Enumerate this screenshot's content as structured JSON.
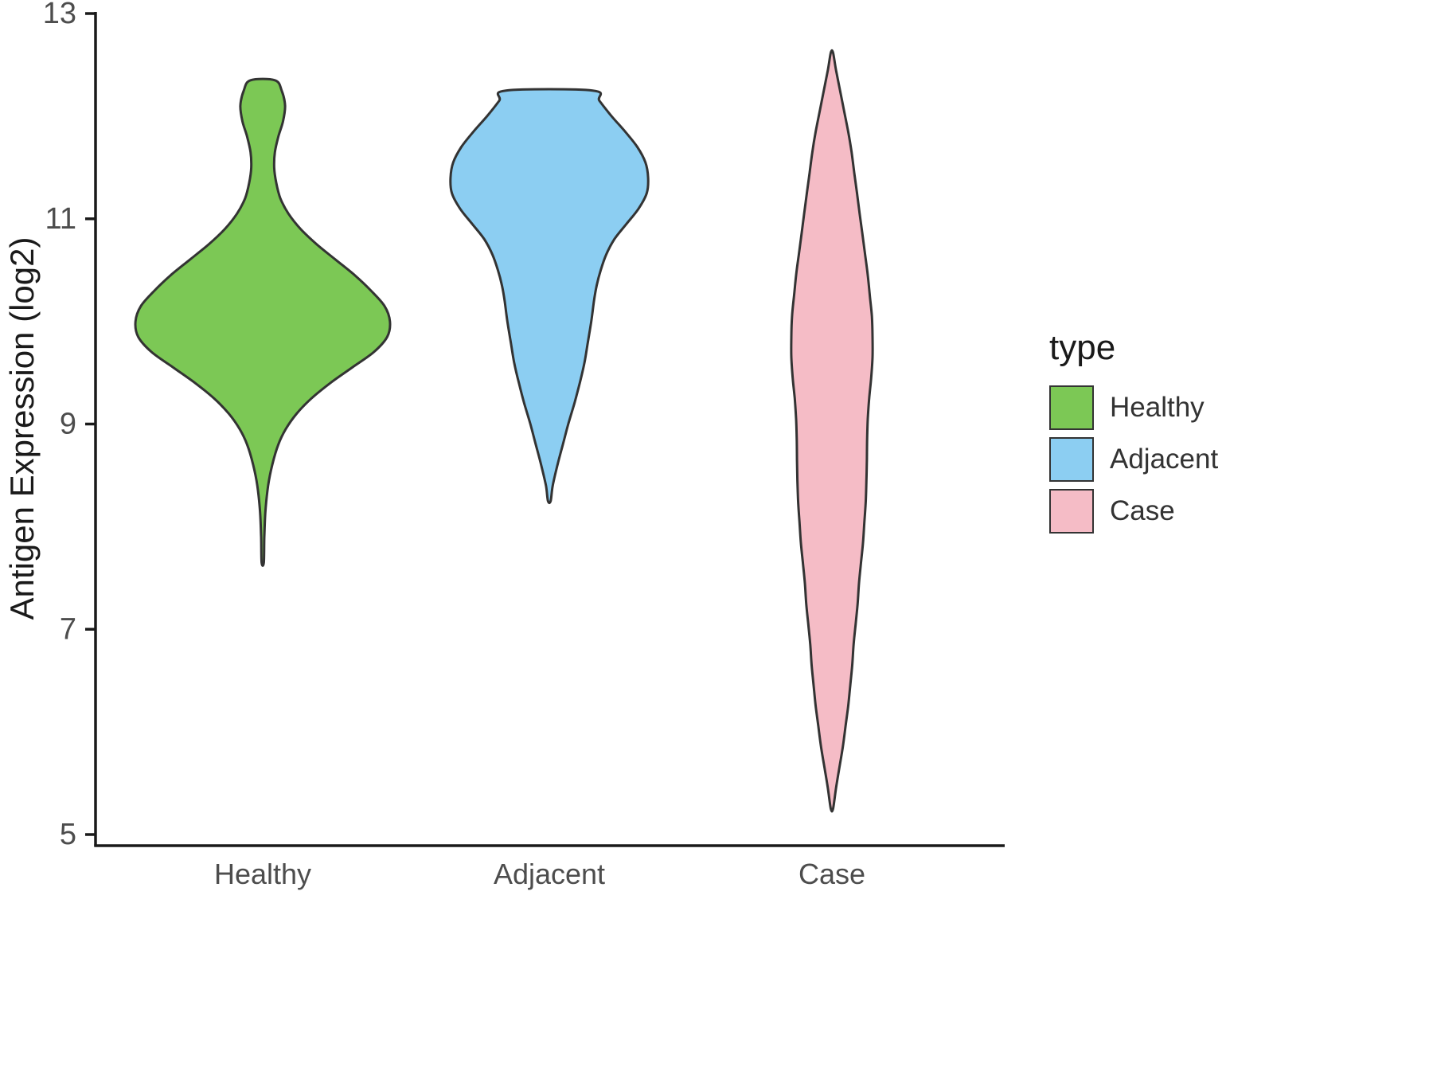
{
  "chart_data": {
    "type": "violin",
    "title": "",
    "xlabel": "",
    "ylabel": "Antigen Expression (log2)",
    "ylim": [
      5,
      13
    ],
    "yticks": [
      "5",
      "7",
      "9",
      "11",
      "13"
    ],
    "ytick_values": [
      5,
      7,
      9,
      11,
      13
    ],
    "categories": [
      "Healthy",
      "Adjacent",
      "Case"
    ],
    "grid": "off",
    "legend": {
      "title": "type",
      "position": "right",
      "entries": [
        {
          "label": "Healthy",
          "color": "#7CC855"
        },
        {
          "label": "Adjacent",
          "color": "#8CCEF2"
        },
        {
          "label": "Case",
          "color": "#F5BCC6"
        }
      ]
    },
    "outline_color": "#333333",
    "axis_color": "#1a1a1a",
    "tick_label_color": "#4d4d4d",
    "series": [
      {
        "name": "Healthy",
        "color": "#7CC855",
        "value_range": [
          7.65,
          12.35
        ],
        "profile": [
          [
            12.35,
            0.09
          ],
          [
            12.25,
            0.14
          ],
          [
            12.1,
            0.165
          ],
          [
            11.95,
            0.15
          ],
          [
            11.8,
            0.115
          ],
          [
            11.65,
            0.09
          ],
          [
            11.5,
            0.085
          ],
          [
            11.35,
            0.1
          ],
          [
            11.2,
            0.13
          ],
          [
            11.05,
            0.19
          ],
          [
            10.9,
            0.28
          ],
          [
            10.75,
            0.4
          ],
          [
            10.6,
            0.54
          ],
          [
            10.45,
            0.68
          ],
          [
            10.3,
            0.8
          ],
          [
            10.15,
            0.9
          ],
          [
            10.0,
            0.94
          ],
          [
            9.85,
            0.92
          ],
          [
            9.7,
            0.82
          ],
          [
            9.55,
            0.66
          ],
          [
            9.4,
            0.5
          ],
          [
            9.25,
            0.36
          ],
          [
            9.1,
            0.25
          ],
          [
            8.95,
            0.17
          ],
          [
            8.8,
            0.115
          ],
          [
            8.6,
            0.07
          ],
          [
            8.4,
            0.04
          ],
          [
            8.15,
            0.02
          ],
          [
            7.9,
            0.012
          ],
          [
            7.65,
            0.008
          ]
        ]
      },
      {
        "name": "Adjacent",
        "color": "#8CCEF2",
        "value_range": [
          8.25,
          12.25
        ],
        "profile": [
          [
            12.25,
            0.32
          ],
          [
            12.15,
            0.37
          ],
          [
            12.0,
            0.46
          ],
          [
            11.85,
            0.56
          ],
          [
            11.7,
            0.65
          ],
          [
            11.55,
            0.71
          ],
          [
            11.4,
            0.73
          ],
          [
            11.25,
            0.72
          ],
          [
            11.1,
            0.66
          ],
          [
            10.95,
            0.57
          ],
          [
            10.8,
            0.48
          ],
          [
            10.65,
            0.42
          ],
          [
            10.5,
            0.38
          ],
          [
            10.35,
            0.35
          ],
          [
            10.2,
            0.33
          ],
          [
            10.0,
            0.31
          ],
          [
            9.8,
            0.285
          ],
          [
            9.6,
            0.26
          ],
          [
            9.4,
            0.225
          ],
          [
            9.2,
            0.185
          ],
          [
            9.0,
            0.14
          ],
          [
            8.8,
            0.1
          ],
          [
            8.6,
            0.06
          ],
          [
            8.4,
            0.025
          ],
          [
            8.25,
            0.01
          ]
        ]
      },
      {
        "name": "Case",
        "color": "#F5BCC6",
        "value_range": [
          5.25,
          12.62
        ],
        "profile": [
          [
            12.62,
            0.008
          ],
          [
            12.45,
            0.03
          ],
          [
            12.25,
            0.06
          ],
          [
            12.05,
            0.09
          ],
          [
            11.85,
            0.12
          ],
          [
            11.65,
            0.145
          ],
          [
            11.45,
            0.165
          ],
          [
            11.25,
            0.185
          ],
          [
            11.05,
            0.205
          ],
          [
            10.85,
            0.225
          ],
          [
            10.65,
            0.245
          ],
          [
            10.45,
            0.265
          ],
          [
            10.25,
            0.28
          ],
          [
            10.05,
            0.295
          ],
          [
            9.85,
            0.3
          ],
          [
            9.65,
            0.3
          ],
          [
            9.45,
            0.29
          ],
          [
            9.25,
            0.275
          ],
          [
            9.05,
            0.265
          ],
          [
            8.85,
            0.26
          ],
          [
            8.65,
            0.258
          ],
          [
            8.45,
            0.255
          ],
          [
            8.25,
            0.25
          ],
          [
            8.05,
            0.24
          ],
          [
            7.85,
            0.23
          ],
          [
            7.65,
            0.215
          ],
          [
            7.45,
            0.2
          ],
          [
            7.25,
            0.19
          ],
          [
            7.05,
            0.175
          ],
          [
            6.85,
            0.16
          ],
          [
            6.65,
            0.15
          ],
          [
            6.45,
            0.135
          ],
          [
            6.25,
            0.12
          ],
          [
            6.05,
            0.1
          ],
          [
            5.85,
            0.08
          ],
          [
            5.65,
            0.055
          ],
          [
            5.45,
            0.03
          ],
          [
            5.25,
            0.008
          ]
        ]
      }
    ]
  }
}
